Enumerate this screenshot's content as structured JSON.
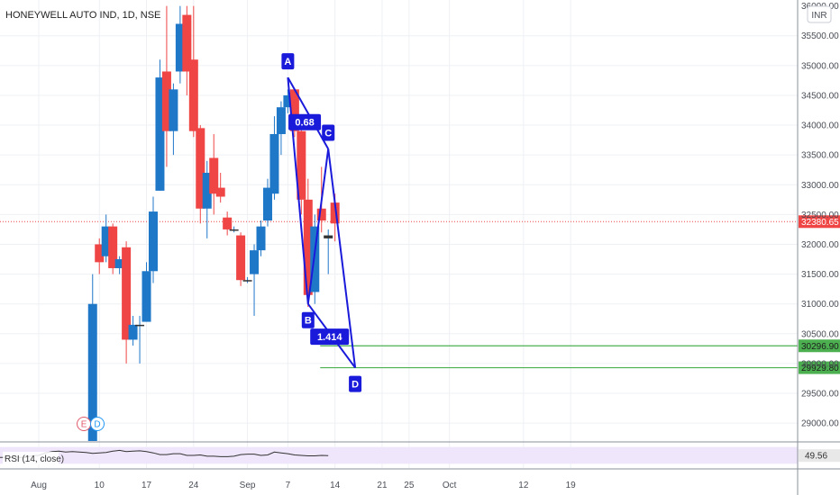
{
  "title": "HONEYWELL AUTO IND, 1D, NSE",
  "currency_badge": "INR",
  "colors": {
    "up": "#1f77c8",
    "down": "#ef4545",
    "pattern": "#1a1adb",
    "level_line": "#4caf50",
    "current_price_line": "#ef4545",
    "rsi_line": "#333333",
    "rsi_band": "#efe6fb",
    "grid": "#eef0f4"
  },
  "chart_data": {
    "type": "candlestick",
    "ylim": [
      28700,
      36100
    ],
    "y_ticks": [
      29000,
      29500,
      30000,
      30500,
      31000,
      31500,
      32000,
      32500,
      33000,
      33500,
      34000,
      34500,
      35000,
      35500
    ],
    "y_tick_labels": [
      "29000.00",
      "29500.00",
      "30000.00",
      "30500.00",
      "31000.00",
      "31500.00",
      "32000.00",
      "32500.00",
      "33000.00",
      "33500.00",
      "34000.00",
      "34500.00",
      "35000.00",
      "35500.00"
    ],
    "y_top_partial_label": "36000.00",
    "x_ticks": [
      {
        "label": "Aug",
        "day": 0
      },
      {
        "label": "10",
        "day": 9
      },
      {
        "label": "17",
        "day": 16
      },
      {
        "label": "24",
        "day": 23
      },
      {
        "label": "Sep",
        "day": 31
      },
      {
        "label": "7",
        "day": 37
      },
      {
        "label": "14",
        "day": 44
      },
      {
        "label": "21",
        "day": 51
      },
      {
        "label": "25",
        "day": 55
      },
      {
        "label": "Oct",
        "day": 61
      },
      {
        "label": "12",
        "day": 72
      },
      {
        "label": "19",
        "day": 79
      }
    ],
    "candles": [
      {
        "day": 8,
        "o": 28700,
        "h": 31500,
        "l": 28700,
        "c": 31000
      },
      {
        "day": 9,
        "o": 32000,
        "h": 32100,
        "l": 31500,
        "c": 31700
      },
      {
        "day": 10,
        "o": 31800,
        "h": 32500,
        "l": 31700,
        "c": 32300
      },
      {
        "day": 11,
        "o": 32300,
        "h": 32350,
        "l": 31500,
        "c": 31600
      },
      {
        "day": 12,
        "o": 31600,
        "h": 31800,
        "l": 31500,
        "c": 31750
      },
      {
        "day": 13,
        "o": 31950,
        "h": 32050,
        "l": 30000,
        "c": 30400
      },
      {
        "day": 14,
        "o": 30400,
        "h": 30800,
        "l": 30300,
        "c": 30650
      },
      {
        "day": 15,
        "o": 30650,
        "h": 30800,
        "l": 30000,
        "c": 30650
      },
      {
        "day": 16,
        "o": 30700,
        "h": 31700,
        "l": 30700,
        "c": 31550
      },
      {
        "day": 17,
        "o": 31550,
        "h": 32800,
        "l": 31350,
        "c": 32550
      },
      {
        "day": 18,
        "o": 32900,
        "h": 35100,
        "l": 32900,
        "c": 34800
      },
      {
        "day": 19,
        "o": 34900,
        "h": 36000,
        "l": 33300,
        "c": 33900
      },
      {
        "day": 20,
        "o": 33900,
        "h": 34700,
        "l": 33500,
        "c": 34600
      },
      {
        "day": 21,
        "o": 34900,
        "h": 36000,
        "l": 34700,
        "c": 35700
      },
      {
        "day": 22,
        "o": 35850,
        "h": 36000,
        "l": 34500,
        "c": 34900
      },
      {
        "day": 23,
        "o": 35100,
        "h": 36000,
        "l": 33800,
        "c": 33900
      },
      {
        "day": 24,
        "o": 33950,
        "h": 34000,
        "l": 32350,
        "c": 32600
      },
      {
        "day": 25,
        "o": 32600,
        "h": 33400,
        "l": 32100,
        "c": 33200
      },
      {
        "day": 26,
        "o": 33450,
        "h": 33850,
        "l": 32500,
        "c": 32850
      },
      {
        "day": 27,
        "o": 32950,
        "h": 33200,
        "l": 32700,
        "c": 32800
      },
      {
        "day": 28,
        "o": 32450,
        "h": 32550,
        "l": 32150,
        "c": 32250
      },
      {
        "day": 29,
        "o": 32250,
        "h": 32300,
        "l": 32200,
        "c": 32250
      },
      {
        "day": 30,
        "o": 32150,
        "h": 32200,
        "l": 31300,
        "c": 31400
      },
      {
        "day": 31,
        "o": 31400,
        "h": 31450,
        "l": 31350,
        "c": 31400
      },
      {
        "day": 32,
        "o": 31500,
        "h": 32000,
        "l": 30800,
        "c": 31900
      },
      {
        "day": 33,
        "o": 31900,
        "h": 32400,
        "l": 31800,
        "c": 32300
      },
      {
        "day": 34,
        "o": 32400,
        "h": 33100,
        "l": 32300,
        "c": 32950
      },
      {
        "day": 35,
        "o": 32850,
        "h": 34150,
        "l": 32750,
        "c": 33850
      },
      {
        "day": 36,
        "o": 33850,
        "h": 34400,
        "l": 33500,
        "c": 34300
      },
      {
        "day": 37,
        "o": 34300,
        "h": 34600,
        "l": 34200,
        "c": 34500
      },
      {
        "day": 38,
        "o": 34600,
        "h": 34600,
        "l": 33800,
        "c": 33900
      },
      {
        "day": 39,
        "o": 33900,
        "h": 34150,
        "l": 32500,
        "c": 32750
      },
      {
        "day": 40,
        "o": 32750,
        "h": 33100,
        "l": 30950,
        "c": 31150
      },
      {
        "day": 41,
        "o": 31200,
        "h": 32500,
        "l": 31000,
        "c": 32300
      },
      {
        "day": 42,
        "o": 32600,
        "h": 33300,
        "l": 32200,
        "c": 32400
      },
      {
        "day": 43,
        "o": 32100,
        "h": 32250,
        "l": 31500,
        "c": 32150
      },
      {
        "day": 44,
        "o": 32700,
        "h": 32850,
        "l": 32050,
        "c": 32350
      }
    ],
    "pattern_points": [
      {
        "label": "A",
        "day": 37,
        "price": 34800
      },
      {
        "label": "B",
        "day": 40,
        "price": 31000
      },
      {
        "label": "C",
        "day": 43,
        "price": 33600
      },
      {
        "label": "D",
        "day": 47,
        "price": 29929.8
      }
    ],
    "ratios": [
      {
        "text": "0.68",
        "day": 39.5,
        "price": 34050
      },
      {
        "text": "1.414",
        "day": 43.2,
        "price": 30450
      }
    ],
    "levels": [
      {
        "price": 30296.9,
        "label": "30296.90",
        "from_day": 41.8
      },
      {
        "price": 29929.8,
        "label": "29929.80",
        "from_day": 41.8
      }
    ],
    "current_price": {
      "price": 32380.65,
      "label": "32380.65"
    },
    "events": [
      {
        "letter": "E",
        "day": 6.7,
        "color": "#e05a6a"
      },
      {
        "letter": "D",
        "day": 8.7,
        "color": "#2196f3"
      }
    ],
    "rsi": {
      "label": "RSI (14, close)",
      "last_label": "49.56",
      "last_value": 49.56,
      "values": [
        45,
        45,
        45,
        45,
        45,
        45,
        45,
        49,
        50,
        56,
        59,
        60,
        58,
        59,
        58,
        57,
        55,
        56,
        57,
        60,
        62,
        59,
        60,
        61,
        59,
        56,
        52,
        52,
        54,
        54,
        50,
        50,
        51,
        48,
        48,
        47,
        47,
        48,
        52,
        53,
        53,
        50,
        51,
        58,
        56,
        54,
        51,
        50,
        49,
        49,
        50,
        49.56
      ]
    }
  }
}
